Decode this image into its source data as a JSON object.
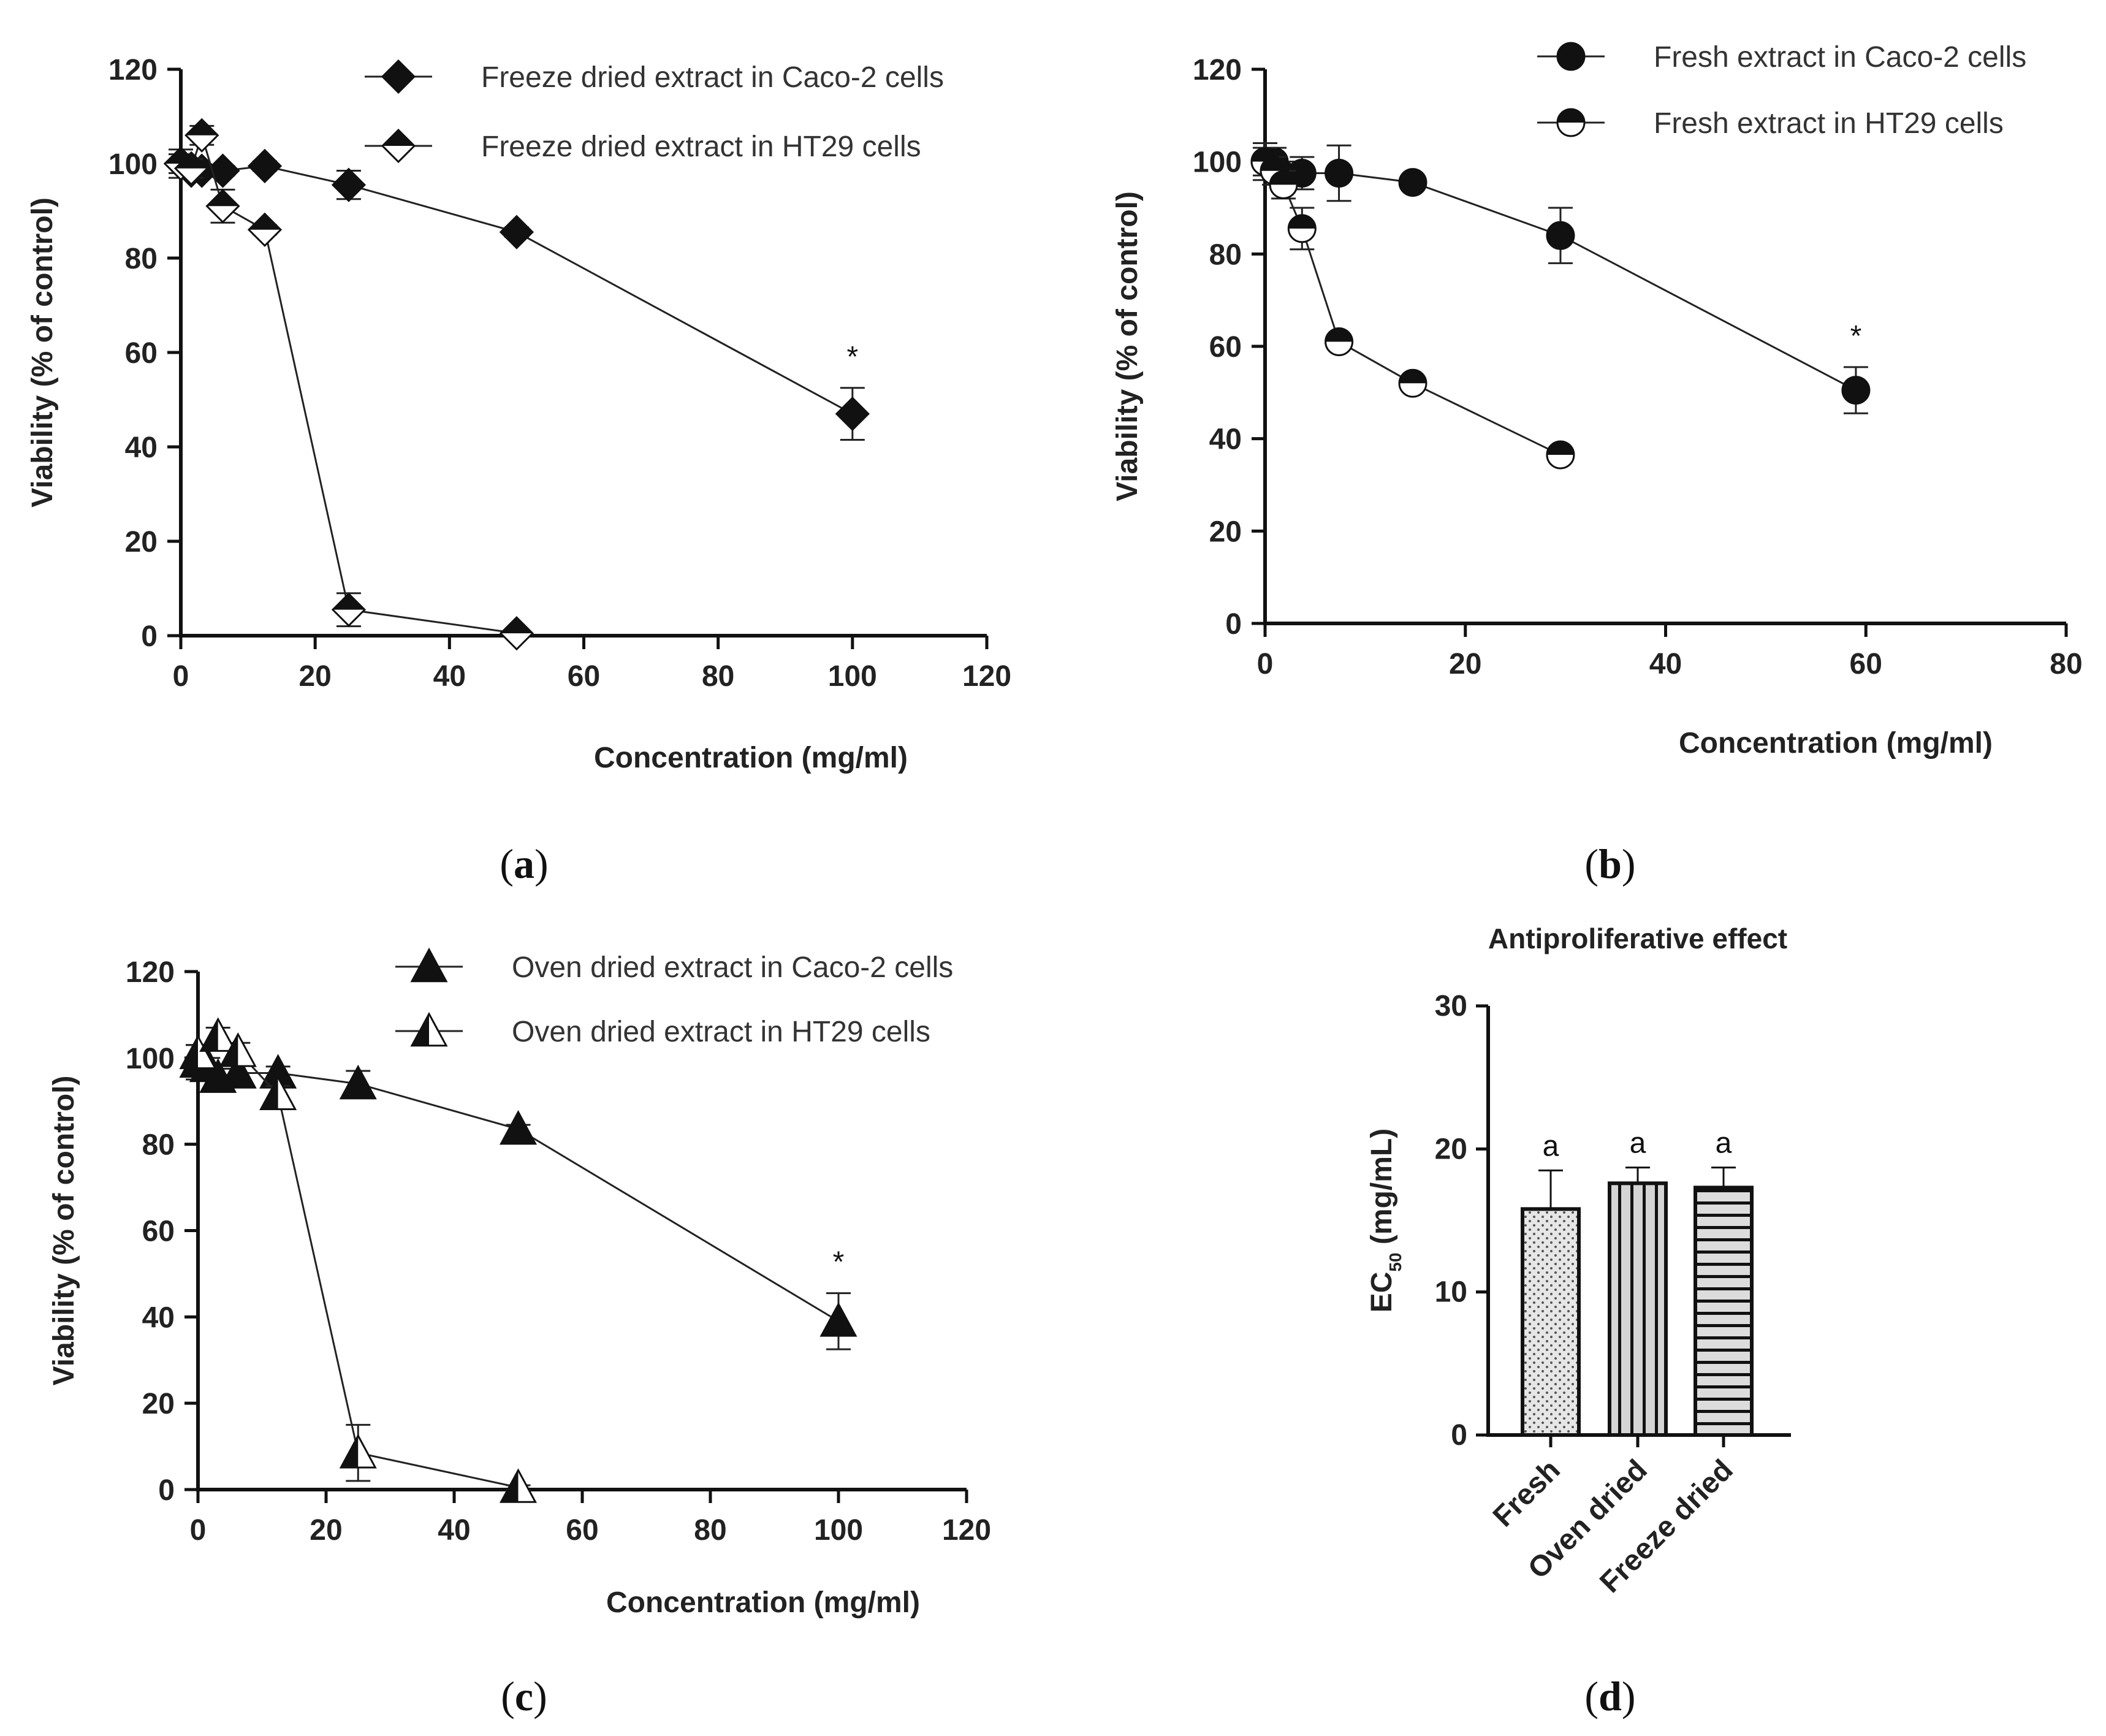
{
  "figure": {
    "panels": [
      "(a)",
      "(b)",
      "(c)",
      "(d)"
    ]
  },
  "chart_data": [
    {
      "id": "a",
      "type": "line",
      "panel_label": "a",
      "xlabel": "Concentration (mg/ml)",
      "ylabel": "Viability (% of control)",
      "xlim": [
        0,
        120
      ],
      "ylim": [
        0,
        120
      ],
      "xticks": [
        0,
        20,
        40,
        60,
        80,
        100,
        120
      ],
      "yticks": [
        0,
        20,
        40,
        60,
        80,
        100,
        120
      ],
      "series": [
        {
          "name": "Freeze dried extract in Caco-2 cells",
          "marker": "diamond-filled",
          "points": [
            {
              "x": 0,
              "y": 100,
              "err": 3
            },
            {
              "x": 1.56,
              "y": 98.5,
              "err": 1
            },
            {
              "x": 3.13,
              "y": 98.5,
              "err": 1
            },
            {
              "x": 6.25,
              "y": 98.5,
              "err": 1
            },
            {
              "x": 12.5,
              "y": 99.5,
              "err": 1
            },
            {
              "x": 25,
              "y": 95.5,
              "err": 3
            },
            {
              "x": 50,
              "y": 85.5,
              "err": 1
            },
            {
              "x": 100,
              "y": 47,
              "err": 5.5
            }
          ],
          "annotations": [
            {
              "x": 100,
              "text": "*"
            }
          ]
        },
        {
          "name": "Freeze dried extract in HT29 cells",
          "marker": "diamond-half",
          "points": [
            {
              "x": 0,
              "y": 100,
              "err": 2
            },
            {
              "x": 1.56,
              "y": 99,
              "err": 2
            },
            {
              "x": 3.13,
              "y": 106,
              "err": 2
            },
            {
              "x": 6.25,
              "y": 91,
              "err": 3.5
            },
            {
              "x": 12.5,
              "y": 86,
              "err": 1
            },
            {
              "x": 25,
              "y": 5.5,
              "err": 3.5
            },
            {
              "x": 50,
              "y": 0.5,
              "err": 0.5
            }
          ]
        }
      ]
    },
    {
      "id": "b",
      "type": "line",
      "panel_label": "b",
      "xlabel": "Concentration (mg/ml)",
      "ylabel": "Viability (% of control)",
      "xlim": [
        0,
        80
      ],
      "ylim": [
        0,
        120
      ],
      "xticks": [
        0,
        20,
        40,
        60,
        80
      ],
      "yticks": [
        0,
        20,
        40,
        60,
        80,
        100,
        120
      ],
      "series": [
        {
          "name": "Fresh extract in Caco-2 cells",
          "marker": "circle-filled",
          "points": [
            {
              "x": 0,
              "y": 100,
              "err": 4
            },
            {
              "x": 0.92,
              "y": 100,
              "err": 3
            },
            {
              "x": 1.84,
              "y": 97,
              "err": 3
            },
            {
              "x": 3.69,
              "y": 97.5,
              "err": 3.5
            },
            {
              "x": 7.38,
              "y": 97.5,
              "err": 6
            },
            {
              "x": 14.75,
              "y": 95.5,
              "err": 1
            },
            {
              "x": 29.5,
              "y": 84,
              "err": 6
            },
            {
              "x": 59,
              "y": 50.5,
              "err": 5
            }
          ],
          "annotations": [
            {
              "x": 59,
              "text": "*"
            }
          ]
        },
        {
          "name": "Fresh extract in HT29 cells",
          "marker": "circle-half",
          "points": [
            {
              "x": 0,
              "y": 100,
              "err": 3
            },
            {
              "x": 0.92,
              "y": 98,
              "err": 3
            },
            {
              "x": 1.84,
              "y": 95,
              "err": 3
            },
            {
              "x": 3.69,
              "y": 85.5,
              "err": 4.5
            },
            {
              "x": 7.38,
              "y": 61,
              "err": 1.5
            },
            {
              "x": 14.75,
              "y": 52,
              "err": 1
            },
            {
              "x": 29.5,
              "y": 36.5,
              "err": 1
            }
          ]
        }
      ]
    },
    {
      "id": "c",
      "type": "line",
      "panel_label": "c",
      "xlabel": "Concentration (mg/ml)",
      "ylabel": "Viability (% of control)",
      "xlim": [
        0,
        120
      ],
      "ylim": [
        0,
        120
      ],
      "xticks": [
        0,
        20,
        40,
        60,
        80,
        100,
        120
      ],
      "yticks": [
        0,
        20,
        40,
        60,
        80,
        100,
        120
      ],
      "series": [
        {
          "name": "Oven dried extract in Caco-2 cells",
          "marker": "triangle-filled",
          "points": [
            {
              "x": 0,
              "y": 99,
              "err": 4
            },
            {
              "x": 1.56,
              "y": 98,
              "err": 2
            },
            {
              "x": 3.13,
              "y": 95.5,
              "err": 2
            },
            {
              "x": 6.25,
              "y": 96.5,
              "err": 2
            },
            {
              "x": 12.5,
              "y": 96.5,
              "err": 1.5
            },
            {
              "x": 25,
              "y": 94,
              "err": 3
            },
            {
              "x": 50,
              "y": 83.5,
              "err": 1
            },
            {
              "x": 100,
              "y": 39,
              "err": 6.5
            }
          ],
          "annotations": [
            {
              "x": 100,
              "text": "*"
            }
          ]
        },
        {
          "name": "Oven dried extract in HT29 cells",
          "marker": "triangle-half",
          "points": [
            {
              "x": 0,
              "y": 101,
              "err": 2
            },
            {
              "x": 3.13,
              "y": 105,
              "err": 2
            },
            {
              "x": 6.25,
              "y": 101.5,
              "err": 2
            },
            {
              "x": 12.5,
              "y": 91.5,
              "err": 2
            },
            {
              "x": 25,
              "y": 8.5,
              "err": 6.5
            },
            {
              "x": 50,
              "y": 0.5,
              "err": 0.5
            }
          ]
        }
      ]
    },
    {
      "id": "d",
      "type": "bar",
      "panel_label": "d",
      "title": "Antiproliferative effect",
      "ylabel_main": "EC",
      "ylabel_sub": "50",
      "ylabel_unit": " (mg/mL)",
      "ylim": [
        0,
        30
      ],
      "yticks": [
        0,
        10,
        20,
        30
      ],
      "categories": [
        "Fresh",
        "Oven dried",
        "Freeze dried"
      ],
      "values": [
        15.8,
        17.6,
        17.3
      ],
      "errors": [
        2.7,
        1.1,
        1.4
      ],
      "patterns": [
        "dots",
        "vertical",
        "horizontal"
      ],
      "letters": [
        "a",
        "a",
        "a"
      ]
    }
  ]
}
